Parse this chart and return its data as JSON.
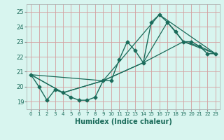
{
  "xlabel": "Humidex (Indice chaleur)",
  "ylabel": "",
  "xlim": [
    -0.5,
    23.5
  ],
  "ylim": [
    18.5,
    25.5
  ],
  "yticks": [
    19,
    20,
    21,
    22,
    23,
    24,
    25
  ],
  "xticks": [
    0,
    1,
    2,
    3,
    4,
    5,
    6,
    7,
    8,
    9,
    10,
    11,
    12,
    13,
    14,
    15,
    16,
    17,
    18,
    19,
    20,
    21,
    22,
    23
  ],
  "xtick_labels": [
    "0",
    "1",
    "2",
    "3",
    "4",
    "5",
    "6",
    "7",
    "8",
    "9",
    "10",
    "11",
    "12",
    "13",
    "14",
    "15",
    "16",
    "17",
    "18",
    "19",
    "20",
    "21",
    "22",
    "23"
  ],
  "bg_color": "#d8f5ef",
  "grid_color": "#d4a0a0",
  "line_color": "#1a6b5a",
  "series": [
    {
      "x": [
        0,
        1,
        2,
        3,
        4,
        5,
        6,
        7,
        8,
        9,
        10,
        11,
        12,
        13,
        14,
        15,
        16,
        17,
        18,
        19,
        20,
        21,
        22,
        23
      ],
      "y": [
        20.8,
        20.0,
        19.1,
        19.8,
        19.6,
        19.3,
        19.1,
        19.1,
        19.3,
        20.4,
        20.4,
        21.8,
        23.0,
        22.4,
        21.6,
        24.3,
        24.8,
        24.3,
        23.7,
        23.0,
        23.0,
        22.7,
        22.2,
        22.2
      ],
      "marker": "D",
      "markersize": 2.5,
      "linewidth": 1.0
    },
    {
      "x": [
        0,
        4,
        9,
        14,
        19,
        23
      ],
      "y": [
        20.8,
        19.6,
        20.4,
        21.6,
        23.0,
        22.2
      ],
      "marker": null,
      "markersize": 0,
      "linewidth": 0.9
    },
    {
      "x": [
        0,
        4,
        9,
        14,
        17,
        19,
        21,
        23
      ],
      "y": [
        20.8,
        19.6,
        20.4,
        21.6,
        24.3,
        23.0,
        22.7,
        22.2
      ],
      "marker": null,
      "markersize": 0,
      "linewidth": 0.9
    },
    {
      "x": [
        0,
        9,
        16,
        23
      ],
      "y": [
        20.8,
        20.4,
        24.8,
        22.2
      ],
      "marker": null,
      "markersize": 0,
      "linewidth": 0.9
    }
  ]
}
